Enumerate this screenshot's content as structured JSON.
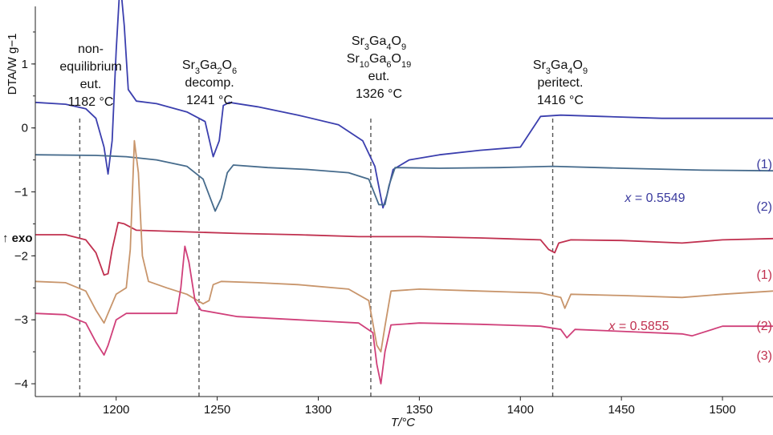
{
  "chart_data": {
    "type": "line",
    "xlabel": "T/°C",
    "ylabel": "DTA/W g−1",
    "xlim": [
      1160,
      1525
    ],
    "ylim": [
      -4.2,
      1.9
    ],
    "x_ticks": [
      "1200",
      "1250",
      "1300",
      "1350",
      "1400",
      "1450",
      "1500"
    ],
    "y_ticks": [
      "1",
      "0",
      "−1",
      "−2",
      "−3",
      "−4"
    ],
    "exo_label": "↑ exo",
    "vlines": [
      1182,
      1241,
      1326,
      1416
    ],
    "annotations": [
      {
        "lines": [
          "non-",
          "equilibrium",
          "eut.",
          "1182 °C"
        ]
      },
      {
        "lines": [
          "Sr3Ga2O6",
          "decomp.",
          "1241 °C"
        ]
      },
      {
        "lines": [
          "Sr3Ga4O9",
          "Sr10Ga6O19",
          "eut.",
          "1326 °C"
        ]
      },
      {
        "lines": [
          "Sr3Ga4O9",
          "peritect.",
          "1416 °C"
        ]
      }
    ],
    "groups": [
      {
        "label": "x = 0.5549",
        "color": "#3a3a9e"
      },
      {
        "label": "x = 0.5855",
        "color": "#c0304f"
      }
    ],
    "series": [
      {
        "name": "(1)",
        "group": 0,
        "color": "#3b3fae",
        "points": [
          [
            1160,
            0.4
          ],
          [
            1175,
            0.37
          ],
          [
            1185,
            0.3
          ],
          [
            1190,
            0.15
          ],
          [
            1194,
            -0.3
          ],
          [
            1196,
            -0.72
          ],
          [
            1198,
            -0.2
          ],
          [
            1200,
            1.2
          ],
          [
            1202,
            2.3
          ],
          [
            1204,
            1.6
          ],
          [
            1206,
            0.6
          ],
          [
            1210,
            0.42
          ],
          [
            1220,
            0.38
          ],
          [
            1235,
            0.25
          ],
          [
            1244,
            0.1
          ],
          [
            1248,
            -0.45
          ],
          [
            1251,
            -0.2
          ],
          [
            1253,
            0.35
          ],
          [
            1256,
            0.4
          ],
          [
            1270,
            0.33
          ],
          [
            1290,
            0.2
          ],
          [
            1310,
            0.05
          ],
          [
            1322,
            -0.2
          ],
          [
            1328,
            -0.6
          ],
          [
            1332,
            -1.25
          ],
          [
            1334,
            -1.05
          ],
          [
            1337,
            -0.65
          ],
          [
            1345,
            -0.5
          ],
          [
            1360,
            -0.42
          ],
          [
            1380,
            -0.35
          ],
          [
            1400,
            -0.3
          ],
          [
            1410,
            0.18
          ],
          [
            1420,
            0.2
          ],
          [
            1440,
            0.18
          ],
          [
            1470,
            0.15
          ],
          [
            1500,
            0.15
          ],
          [
            1525,
            0.15
          ]
        ]
      },
      {
        "name": "(2)",
        "group": 0,
        "color": "#466b8c",
        "points": [
          [
            1160,
            -0.42
          ],
          [
            1190,
            -0.43
          ],
          [
            1205,
            -0.45
          ],
          [
            1220,
            -0.5
          ],
          [
            1235,
            -0.6
          ],
          [
            1243,
            -0.8
          ],
          [
            1249,
            -1.3
          ],
          [
            1252,
            -1.1
          ],
          [
            1255,
            -0.7
          ],
          [
            1258,
            -0.58
          ],
          [
            1275,
            -0.62
          ],
          [
            1295,
            -0.65
          ],
          [
            1315,
            -0.7
          ],
          [
            1325,
            -0.8
          ],
          [
            1330,
            -1.2
          ],
          [
            1333,
            -1.2
          ],
          [
            1335,
            -0.9
          ],
          [
            1338,
            -0.62
          ],
          [
            1360,
            -0.63
          ],
          [
            1390,
            -0.62
          ],
          [
            1416,
            -0.6
          ],
          [
            1450,
            -0.63
          ],
          [
            1490,
            -0.66
          ],
          [
            1525,
            -0.67
          ]
        ]
      },
      {
        "name": "(1)",
        "group": 1,
        "color": "#c0304f",
        "points": [
          [
            1160,
            -1.67
          ],
          [
            1175,
            -1.67
          ],
          [
            1185,
            -1.75
          ],
          [
            1190,
            -1.95
          ],
          [
            1194,
            -2.3
          ],
          [
            1196,
            -2.28
          ],
          [
            1198,
            -1.9
          ],
          [
            1201,
            -1.48
          ],
          [
            1204,
            -1.5
          ],
          [
            1210,
            -1.6
          ],
          [
            1230,
            -1.62
          ],
          [
            1260,
            -1.65
          ],
          [
            1290,
            -1.67
          ],
          [
            1320,
            -1.7
          ],
          [
            1350,
            -1.7
          ],
          [
            1380,
            -1.72
          ],
          [
            1410,
            -1.75
          ],
          [
            1414,
            -1.9
          ],
          [
            1417,
            -1.95
          ],
          [
            1419,
            -1.8
          ],
          [
            1425,
            -1.75
          ],
          [
            1450,
            -1.76
          ],
          [
            1480,
            -1.8
          ],
          [
            1500,
            -1.75
          ],
          [
            1525,
            -1.73
          ]
        ]
      },
      {
        "name": "(2)",
        "group": 1,
        "color": "#c8956b",
        "points": [
          [
            1160,
            -2.4
          ],
          [
            1175,
            -2.42
          ],
          [
            1185,
            -2.55
          ],
          [
            1190,
            -2.85
          ],
          [
            1194,
            -3.05
          ],
          [
            1196,
            -2.9
          ],
          [
            1200,
            -2.6
          ],
          [
            1205,
            -2.5
          ],
          [
            1207,
            -1.9
          ],
          [
            1209,
            -0.2
          ],
          [
            1211,
            -0.7
          ],
          [
            1213,
            -2.0
          ],
          [
            1216,
            -2.4
          ],
          [
            1225,
            -2.5
          ],
          [
            1235,
            -2.6
          ],
          [
            1243,
            -2.75
          ],
          [
            1246,
            -2.7
          ],
          [
            1248,
            -2.45
          ],
          [
            1252,
            -2.4
          ],
          [
            1270,
            -2.42
          ],
          [
            1290,
            -2.45
          ],
          [
            1315,
            -2.52
          ],
          [
            1325,
            -2.7
          ],
          [
            1329,
            -3.4
          ],
          [
            1331,
            -3.5
          ],
          [
            1333,
            -3.1
          ],
          [
            1336,
            -2.55
          ],
          [
            1350,
            -2.52
          ],
          [
            1380,
            -2.55
          ],
          [
            1410,
            -2.58
          ],
          [
            1420,
            -2.65
          ],
          [
            1422,
            -2.82
          ],
          [
            1425,
            -2.6
          ],
          [
            1450,
            -2.62
          ],
          [
            1480,
            -2.65
          ],
          [
            1500,
            -2.6
          ],
          [
            1525,
            -2.55
          ]
        ]
      },
      {
        "name": "(3)",
        "group": 1,
        "color": "#d0407a",
        "points": [
          [
            1160,
            -2.9
          ],
          [
            1175,
            -2.92
          ],
          [
            1185,
            -3.05
          ],
          [
            1190,
            -3.35
          ],
          [
            1194,
            -3.55
          ],
          [
            1196,
            -3.4
          ],
          [
            1200,
            -3.0
          ],
          [
            1205,
            -2.9
          ],
          [
            1230,
            -2.9
          ],
          [
            1232,
            -2.5
          ],
          [
            1234,
            -1.85
          ],
          [
            1236,
            -2.1
          ],
          [
            1239,
            -2.7
          ],
          [
            1242,
            -2.85
          ],
          [
            1260,
            -2.95
          ],
          [
            1290,
            -3.0
          ],
          [
            1320,
            -3.05
          ],
          [
            1327,
            -3.2
          ],
          [
            1329,
            -3.7
          ],
          [
            1331,
            -4.0
          ],
          [
            1333,
            -3.5
          ],
          [
            1336,
            -3.08
          ],
          [
            1350,
            -3.05
          ],
          [
            1380,
            -3.07
          ],
          [
            1410,
            -3.1
          ],
          [
            1420,
            -3.15
          ],
          [
            1423,
            -3.28
          ],
          [
            1427,
            -3.15
          ],
          [
            1450,
            -3.18
          ],
          [
            1480,
            -3.22
          ],
          [
            1485,
            -3.25
          ],
          [
            1500,
            -3.1
          ],
          [
            1525,
            -3.1
          ]
        ]
      }
    ]
  }
}
